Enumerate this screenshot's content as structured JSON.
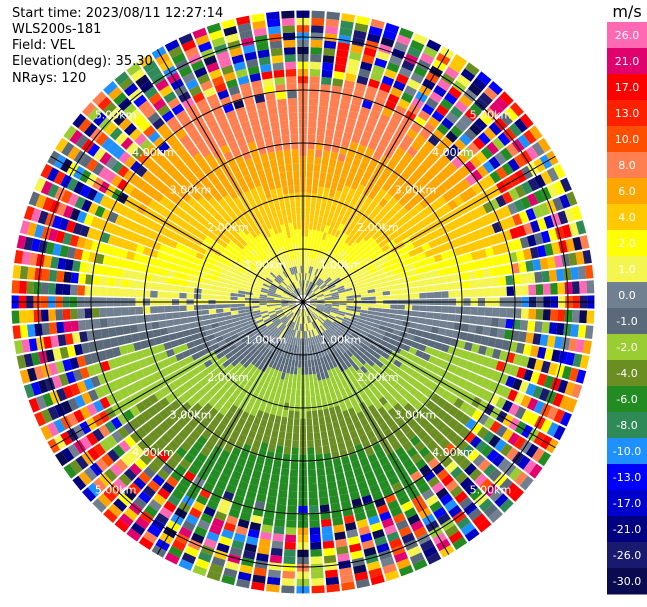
{
  "header": {
    "start_time": "Start time: 2023/08/11 12:27:14",
    "instrument": "WLS200s-181",
    "field": "Field: VEL",
    "elevation": "Elevation(deg): 35.30",
    "nrays": "NRays: 120"
  },
  "colorbar": {
    "unit": "m/s",
    "ticks": [
      "26.0",
      "21.0",
      "17.0",
      "13.0",
      "10.0",
      "8.0",
      "6.0",
      "4.0",
      "2.0",
      "1.0",
      "0.0",
      "-1.0",
      "-2.0",
      "-4.0",
      "-6.0",
      "-8.0",
      "-10.0",
      "-13.0",
      "-17.0",
      "-21.0",
      "-26.0",
      "-30.0"
    ],
    "colors": [
      "#ff69b4",
      "#e0006e",
      "#ff0000",
      "#ff2000",
      "#ff4e00",
      "#ff7f50",
      "#ffa500",
      "#ffc800",
      "#ffff00",
      "#f5f550",
      "#708090",
      "#5a6a7a",
      "#9acd32",
      "#6b8e23",
      "#228b22",
      "#2e8b57",
      "#1e90ff",
      "#0000ff",
      "#0000cd",
      "#000080",
      "#191970",
      "#0a0a50"
    ]
  },
  "range_rings": [
    "1.00km",
    "2.00km",
    "3.00km",
    "4.00km",
    "5.00km"
  ],
  "chart_data": {
    "type": "ppi",
    "field": "VEL",
    "units": "m/s",
    "nrays": 120,
    "elevation_deg": 35.3,
    "range_km": [
      0,
      5.5
    ],
    "rings_km": [
      1,
      2,
      3,
      4,
      5
    ],
    "spokes_deg": [
      0,
      30,
      60,
      90,
      120,
      150,
      180,
      210,
      240,
      270,
      300,
      330
    ],
    "vmin": -30,
    "vmax": 26,
    "pattern_description_ranges": [
      {
        "range_km": [
          0.0,
          1.2
        ],
        "north_half": "gray near 0 m/s",
        "south_half": "gray/olive near 0 to -2 m/s"
      },
      {
        "range_km": [
          1.2,
          2.5
        ],
        "north_half": "yellow about 2 m/s",
        "south_half": "olive to green about -2 to -4 m/s"
      },
      {
        "range_km": [
          2.5,
          4.0
        ],
        "north_half": "orange about 6 to 8 m/s",
        "south_half": "green to dark green about -6 to -8 m/s"
      },
      {
        "range_km": [
          4.0,
          5.5
        ],
        "north_half": "noisy",
        "south_half": "noisy"
      }
    ]
  }
}
